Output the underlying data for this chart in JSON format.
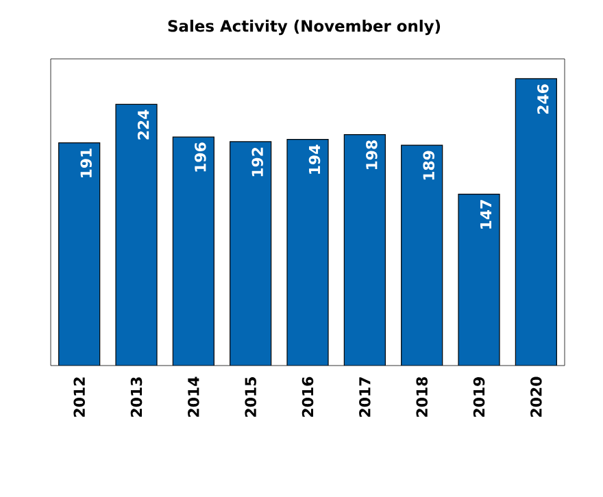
{
  "chart_data": {
    "type": "bar",
    "title": "Sales Activity (November only)",
    "categories": [
      "2012",
      "2013",
      "2014",
      "2015",
      "2016",
      "2017",
      "2018",
      "2019",
      "2020"
    ],
    "values": [
      191,
      224,
      196,
      192,
      194,
      198,
      189,
      147,
      246
    ],
    "color": "#0467b3",
    "ylim": [
      0,
      263
    ],
    "data_labels": true,
    "tick_labels": "x"
  }
}
